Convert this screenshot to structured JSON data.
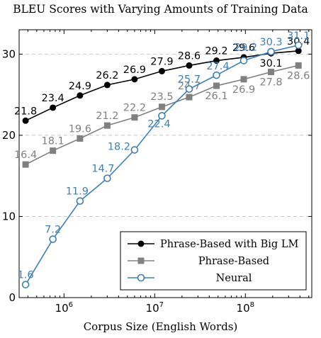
{
  "chart_data": {
    "type": "line",
    "title": "BLEU Scores with Varying Amounts of Training Data",
    "xlabel": "Corpus Size (English Words)",
    "ylabel": "",
    "x_scale": "log",
    "x": [
      377000,
      754000,
      1500000,
      3000000,
      6000000,
      12000000,
      24000000,
      48000000,
      96000000,
      192000000,
      385000000
    ],
    "xlim": [
      320000,
      540000000
    ],
    "ylim": [
      0,
      33
    ],
    "x_ticks": [
      {
        "base": "10",
        "exp": "6",
        "value": 1000000
      },
      {
        "base": "10",
        "exp": "7",
        "value": 10000000
      },
      {
        "base": "10",
        "exp": "8",
        "value": 100000000
      }
    ],
    "y_ticks": [
      0,
      10,
      20,
      30
    ],
    "grid": "horizontal dashed",
    "legend_position": "bottom-right",
    "series": [
      {
        "name": "Phrase-Based with Big LM",
        "color": "#000000",
        "marker": "filled-circle",
        "values": [
          21.8,
          23.4,
          24.9,
          26.2,
          26.9,
          27.9,
          28.6,
          29.2,
          29.6,
          30.1,
          30.4
        ],
        "labels": [
          "21.8",
          "23.4",
          "24.9",
          "26.2",
          "26.9",
          "27.9",
          "28.6",
          "29.2",
          "29.6",
          "30.1",
          "30.4"
        ]
      },
      {
        "name": "Phrase-Based",
        "color": "#808080",
        "marker": "filled-square",
        "values": [
          16.4,
          18.1,
          19.6,
          21.2,
          22.2,
          23.5,
          24.7,
          26.1,
          26.9,
          27.8,
          28.6
        ],
        "labels": [
          "16.4",
          "18.1",
          "19.6",
          "21.2",
          "22.2",
          "23.5",
          "24.7",
          "26.1",
          "26.9",
          "27.8",
          "28.6"
        ]
      },
      {
        "name": "Neural",
        "color": "#3e7fb8",
        "marker": "open-circle",
        "values": [
          1.6,
          7.2,
          11.9,
          14.7,
          18.2,
          22.4,
          25.7,
          27.4,
          29.2,
          30.3,
          31.1
        ],
        "labels": [
          "1.6",
          "7.2",
          "11.9",
          "14.7",
          "18.2",
          "22.4",
          "25.7",
          "27.4",
          "29.2",
          "30.3",
          "31.1"
        ]
      }
    ]
  }
}
